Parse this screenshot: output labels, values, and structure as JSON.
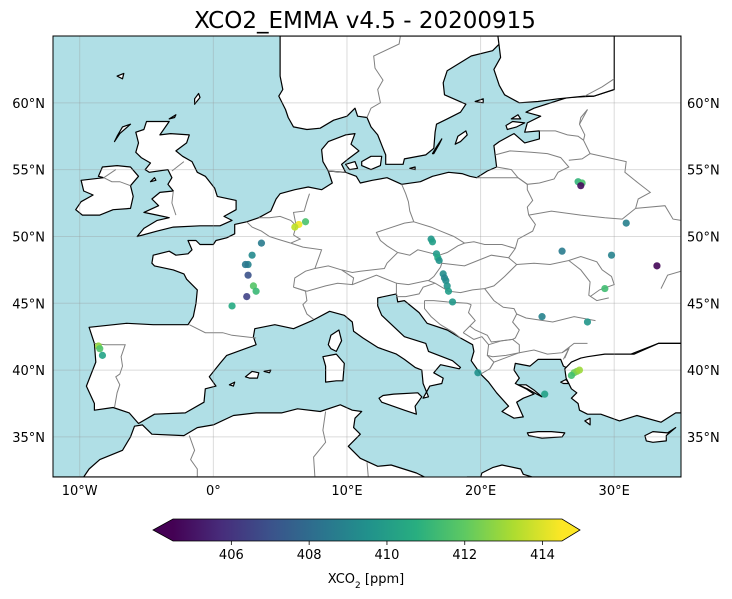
{
  "title": "XCO2_EMMA v4.5 - 20200915",
  "map": {
    "extent": {
      "lon_min": -12,
      "lon_max": 35,
      "lat_min": 32,
      "lat_max": 65
    },
    "ocean_color": "#b0dfe6",
    "land_color": "#ffffff",
    "coast_color": "#000000",
    "border_color": "#808080",
    "lat_ticks": [
      {
        "value": 35,
        "label": "35°N"
      },
      {
        "value": 40,
        "label": "40°N"
      },
      {
        "value": 45,
        "label": "45°N"
      },
      {
        "value": 50,
        "label": "50°N"
      },
      {
        "value": 55,
        "label": "55°N"
      },
      {
        "value": 60,
        "label": "60°N"
      }
    ],
    "lon_ticks": [
      {
        "value": -10,
        "label": "10°W"
      },
      {
        "value": 0,
        "label": "0°"
      },
      {
        "value": 10,
        "label": "10°E"
      },
      {
        "value": 20,
        "label": "20°E"
      },
      {
        "value": 30,
        "label": "30°E"
      }
    ],
    "grid": true
  },
  "colorbar": {
    "label": "XCO2 [ppm]",
    "label_main": "XCO",
    "label_sub": "2",
    "label_unit": " [ppm]",
    "min": 404.5,
    "max": 414.5,
    "ticks": [
      {
        "value": 406,
        "label": "406"
      },
      {
        "value": 408,
        "label": "408"
      },
      {
        "value": 410,
        "label": "410"
      },
      {
        "value": 412,
        "label": "412"
      },
      {
        "value": 414,
        "label": "414"
      }
    ],
    "extend": "both",
    "colormap": "viridis"
  },
  "chart_data": {
    "type": "scatter",
    "title": "XCO2_EMMA v4.5 - 20200915",
    "xlabel": "",
    "ylabel": "",
    "points": [
      {
        "lon": 6.4,
        "lat": 50.9,
        "xco2": 414.3
      },
      {
        "lon": 6.1,
        "lat": 50.7,
        "xco2": 413.5
      },
      {
        "lon": 6.9,
        "lat": 51.1,
        "xco2": 411.6
      },
      {
        "lon": 3.6,
        "lat": 49.5,
        "xco2": 408.6
      },
      {
        "lon": 2.9,
        "lat": 48.6,
        "xco2": 409.2
      },
      {
        "lon": 2.6,
        "lat": 47.9,
        "xco2": 408.9
      },
      {
        "lon": 2.4,
        "lat": 47.9,
        "xco2": 408.5
      },
      {
        "lon": 2.6,
        "lat": 47.1,
        "xco2": 407.0
      },
      {
        "lon": 3.0,
        "lat": 46.3,
        "xco2": 411.8
      },
      {
        "lon": 3.2,
        "lat": 45.9,
        "xco2": 411.2
      },
      {
        "lon": 2.5,
        "lat": 45.5,
        "xco2": 406.5
      },
      {
        "lon": 1.4,
        "lat": 44.8,
        "xco2": 410.6
      },
      {
        "lon": -8.6,
        "lat": 41.8,
        "xco2": 412.9
      },
      {
        "lon": -8.5,
        "lat": 41.6,
        "xco2": 411.7
      },
      {
        "lon": -8.3,
        "lat": 41.1,
        "xco2": 410.3
      },
      {
        "lon": 16.3,
        "lat": 49.8,
        "xco2": 409.7
      },
      {
        "lon": 16.4,
        "lat": 49.6,
        "xco2": 410.1
      },
      {
        "lon": 16.7,
        "lat": 48.7,
        "xco2": 409.9
      },
      {
        "lon": 16.8,
        "lat": 48.4,
        "xco2": 410.5
      },
      {
        "lon": 16.9,
        "lat": 48.2,
        "xco2": 409.6
      },
      {
        "lon": 17.2,
        "lat": 47.2,
        "xco2": 409.4
      },
      {
        "lon": 17.3,
        "lat": 46.9,
        "xco2": 409.0
      },
      {
        "lon": 17.4,
        "lat": 46.7,
        "xco2": 409.3
      },
      {
        "lon": 17.5,
        "lat": 46.3,
        "xco2": 409.6
      },
      {
        "lon": 17.6,
        "lat": 45.9,
        "xco2": 410.0
      },
      {
        "lon": 17.9,
        "lat": 45.1,
        "xco2": 409.8
      },
      {
        "lon": 19.8,
        "lat": 39.8,
        "xco2": 409.5
      },
      {
        "lon": 24.6,
        "lat": 44.0,
        "xco2": 408.9
      },
      {
        "lon": 27.3,
        "lat": 54.1,
        "xco2": 411.0
      },
      {
        "lon": 27.6,
        "lat": 54.0,
        "xco2": 411.6
      },
      {
        "lon": 27.5,
        "lat": 53.8,
        "xco2": 404.8
      },
      {
        "lon": 26.1,
        "lat": 48.9,
        "xco2": 408.6
      },
      {
        "lon": 29.8,
        "lat": 48.6,
        "xco2": 408.9
      },
      {
        "lon": 30.9,
        "lat": 51.0,
        "xco2": 408.8
      },
      {
        "lon": 33.2,
        "lat": 47.8,
        "xco2": 404.6
      },
      {
        "lon": 29.3,
        "lat": 46.1,
        "xco2": 411.4
      },
      {
        "lon": 28.0,
        "lat": 43.6,
        "xco2": 409.7
      },
      {
        "lon": 27.0,
        "lat": 39.8,
        "xco2": 412.2
      },
      {
        "lon": 27.2,
        "lat": 39.9,
        "xco2": 412.6
      },
      {
        "lon": 26.8,
        "lat": 39.6,
        "xco2": 411.5
      },
      {
        "lon": 27.4,
        "lat": 40.0,
        "xco2": 413.0
      },
      {
        "lon": 24.8,
        "lat": 38.2,
        "xco2": 410.2
      }
    ],
    "ylim": [
      32,
      65
    ],
    "xlim": [
      -12,
      35
    ]
  }
}
